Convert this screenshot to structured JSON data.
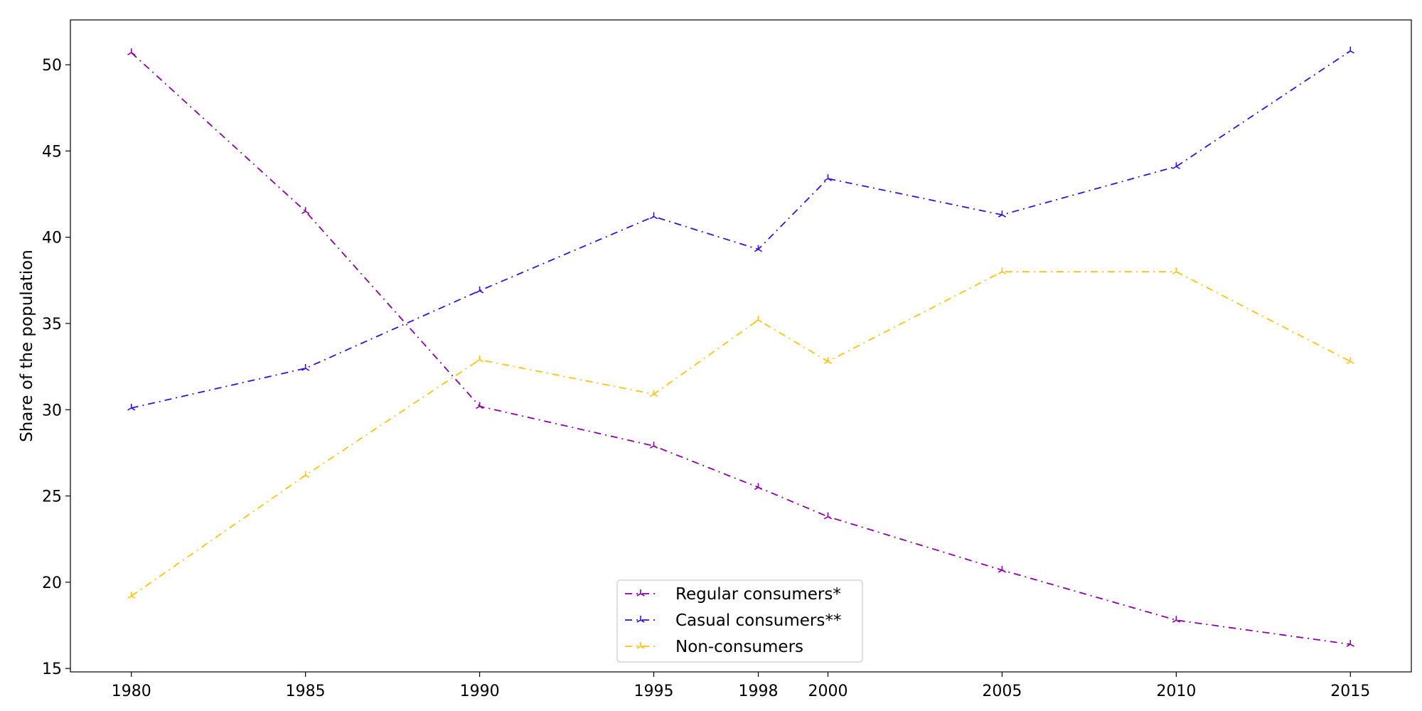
{
  "chart_data": {
    "type": "line",
    "title": "",
    "xlabel": "",
    "ylabel": "Share of the population",
    "x": [
      1980,
      1985,
      1990,
      1995,
      1998,
      2000,
      2005,
      2010,
      2015
    ],
    "xticks": [
      1980,
      1985,
      1990,
      1995,
      1998,
      2000,
      2005,
      2010,
      2015
    ],
    "yticks": [
      15,
      20,
      25,
      30,
      35,
      40,
      45,
      50
    ],
    "xlim": [
      1978.25,
      2016.75
    ],
    "ylim": [
      14.8,
      52.6
    ],
    "grid": false,
    "legend_position": "bottom-center",
    "series": [
      {
        "name": "Regular consumers*",
        "color": "#8b00a8",
        "values": [
          50.7,
          41.5,
          30.2,
          27.9,
          25.5,
          23.8,
          20.7,
          17.8,
          16.4
        ]
      },
      {
        "name": "Casual consumers**",
        "color": "#3a0ee0",
        "values": [
          30.1,
          32.4,
          36.9,
          41.2,
          39.3,
          43.4,
          41.3,
          44.1,
          50.8
        ]
      },
      {
        "name": "Non-consumers",
        "color": "#ffc20e",
        "values": [
          19.2,
          26.2,
          32.9,
          30.9,
          35.2,
          32.8,
          38.0,
          38.0,
          32.8
        ]
      }
    ]
  }
}
